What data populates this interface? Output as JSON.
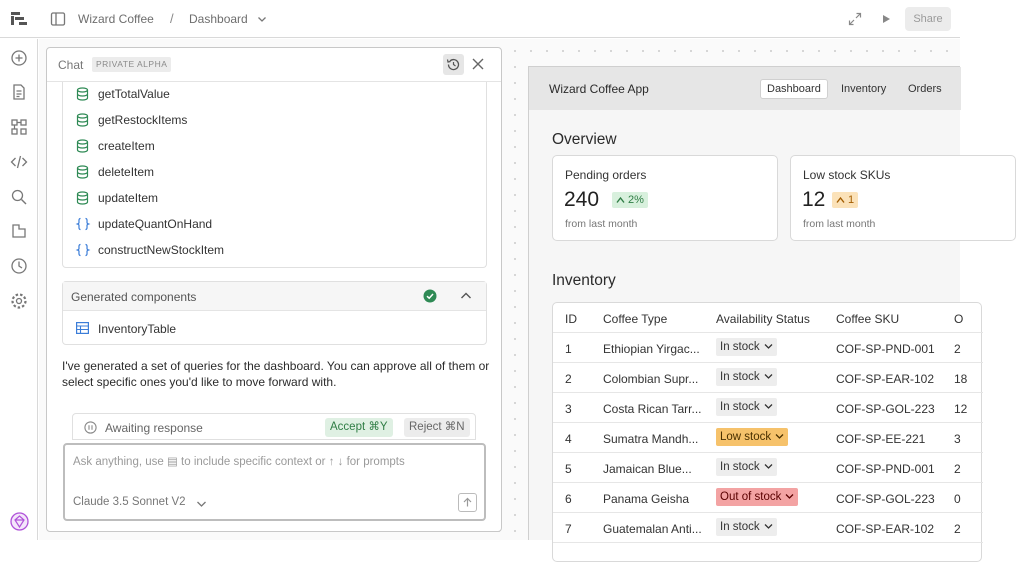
{
  "topbar": {
    "breadcrumb_project": "Wizard Coffee",
    "breadcrumb_separator": "/",
    "breadcrumb_page": "Dashboard",
    "share_label": "Share"
  },
  "chat": {
    "title": "Chat",
    "badge": "PRIVATE ALPHA",
    "queries": [
      {
        "label": "getTotalValue",
        "icon": "database-icon"
      },
      {
        "label": "getRestockItems",
        "icon": "database-icon"
      },
      {
        "label": "createItem",
        "icon": "database-icon"
      },
      {
        "label": "deleteItem",
        "icon": "database-icon"
      },
      {
        "label": "updateItem",
        "icon": "database-icon"
      },
      {
        "label": "updateQuantOnHand",
        "icon": "braces-icon"
      },
      {
        "label": "constructNewStockItem",
        "icon": "braces-icon"
      }
    ],
    "generated_components": {
      "title": "Generated components",
      "items": [
        {
          "label": "InventoryTable",
          "icon": "table-icon"
        }
      ]
    },
    "message": "I've generated a set of queries for the dashboard. You can approve all of them or select specific ones you'd like to move forward with.",
    "awaiting": {
      "label": "Awaiting response",
      "accept_label": "Accept ⌘Y",
      "reject_label": "Reject ⌘N"
    },
    "input": {
      "placeholder": "Ask anything, use ▤ to include specific context or ↑ ↓ for prompts",
      "model": "Claude 3.5 Sonnet V2"
    }
  },
  "app": {
    "brand": "Wizard Coffee App",
    "tabs": [
      {
        "label": "Dashboard",
        "active": true
      },
      {
        "label": "Inventory",
        "active": false
      },
      {
        "label": "Orders",
        "active": false
      }
    ],
    "overview_title": "Overview",
    "cards": [
      {
        "label": "Pending orders",
        "value": "240",
        "delta": "2%",
        "delta_color": "#2f7d45",
        "sub": "from last month"
      },
      {
        "label": "Low stock SKUs",
        "value": "12",
        "delta": "1",
        "delta_color": "#a35d00",
        "sub": "from last month"
      }
    ],
    "inventory_title": "Inventory",
    "table": {
      "headers": [
        "ID",
        "Coffee Type",
        "Availability Status",
        "Coffee SKU",
        "O"
      ],
      "rows": [
        {
          "id": "1",
          "type": "Ethiopian Yirgac...",
          "status": "In stock",
          "sku": "COF-SP-PND-001",
          "qty": "2"
        },
        {
          "id": "2",
          "type": "Colombian Supr...",
          "status": "In stock",
          "sku": "COF-SP-EAR-102",
          "qty": "18"
        },
        {
          "id": "3",
          "type": "Costa Rican Tarr...",
          "status": "In stock",
          "sku": "COF-SP-GOL-223",
          "qty": "12"
        },
        {
          "id": "4",
          "type": "Sumatra Mandh...",
          "status": "Low stock",
          "sku": "COF-SP-EE-221",
          "qty": "3"
        },
        {
          "id": "5",
          "type": "Jamaican Blue...",
          "status": "In stock",
          "sku": "COF-SP-PND-001",
          "qty": "2"
        },
        {
          "id": "6",
          "type": "Panama Geisha",
          "status": "Out of stock",
          "sku": "COF-SP-GOL-223",
          "qty": "0"
        },
        {
          "id": "7",
          "type": "Guatemalan Anti...",
          "status": "In stock",
          "sku": "COF-SP-EAR-102",
          "qty": "2"
        }
      ]
    },
    "status_colors": {
      "in_stock": "#ededed",
      "low_stock": "#f6c26b",
      "out_of_stock": "#f3a3a3"
    }
  }
}
